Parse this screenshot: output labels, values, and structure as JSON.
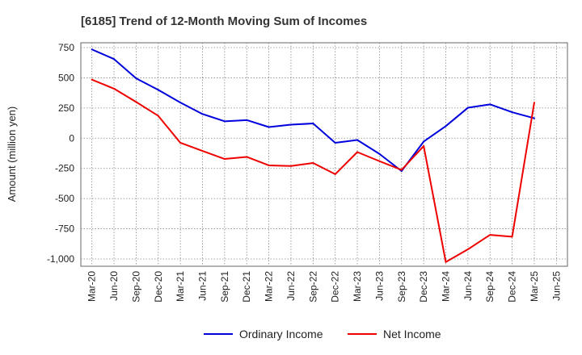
{
  "chart_data": {
    "type": "line",
    "title": "[6185]  Trend of 12-Month Moving Sum of Incomes",
    "xlabel": "",
    "ylabel": "Amount (million yen)",
    "categories": [
      "Mar-20",
      "Jun-20",
      "Sep-20",
      "Dec-20",
      "Mar-21",
      "Jun-21",
      "Sep-21",
      "Dec-21",
      "Mar-22",
      "Jun-22",
      "Sep-22",
      "Dec-22",
      "Mar-23",
      "Jun-23",
      "Sep-23",
      "Dec-23",
      "Mar-24",
      "Jun-24",
      "Sep-24",
      "Dec-24",
      "Mar-25",
      "Jun-25"
    ],
    "ylim": [
      -1060,
      790
    ],
    "yticks": [
      750,
      500,
      250,
      0,
      -250,
      -500,
      -750,
      -1000
    ],
    "ytick_labels": [
      "750",
      "500",
      "250",
      "0",
      "-250",
      "-500",
      "-750",
      "-1,000"
    ],
    "grid": true,
    "legend_position": "bottom",
    "series": [
      {
        "name": "Ordinary Income",
        "color": "#0000dd",
        "values": [
          735,
          655,
          495,
          400,
          295,
          200,
          140,
          150,
          92,
          112,
          122,
          -38,
          -15,
          -130,
          -272,
          -28,
          100,
          252,
          280,
          215,
          165,
          null
        ]
      },
      {
        "name": "Net Income",
        "color": "#ee0000",
        "values": [
          485,
          410,
          300,
          185,
          -38,
          -105,
          -172,
          -155,
          -225,
          -230,
          -205,
          -298,
          -115,
          -190,
          -262,
          -65,
          -1025,
          -920,
          -800,
          -815,
          295,
          null
        ]
      }
    ]
  }
}
